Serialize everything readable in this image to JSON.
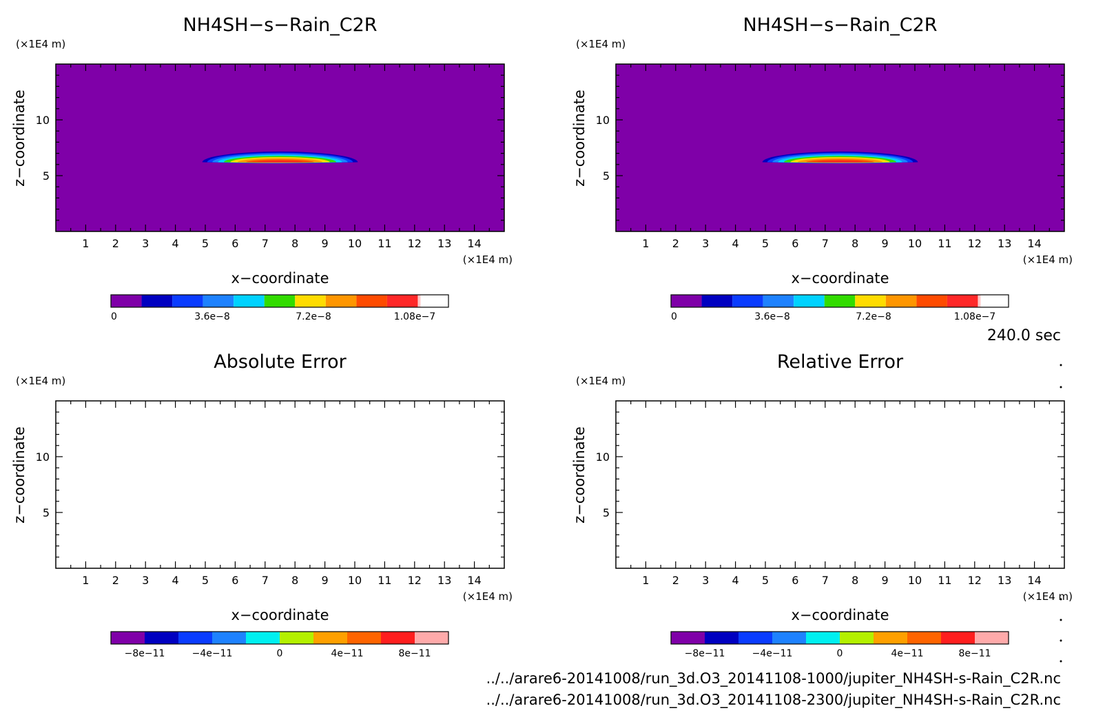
{
  "figure": {
    "time_label": "240.0 sec",
    "files": [
      "../../arare6-20141008/run_3d.O3_20141108-1000/jupiter_NH4SH-s-Rain_C2R.nc",
      "../../arare6-20141008/run_3d.O3_20141108-2300/jupiter_NH4SH-s-Rain_C2R.nc"
    ]
  },
  "chart_data": [
    {
      "type": "heatmap",
      "title": "NH4SH−s−Rain_C2R",
      "xlabel": "x−coordinate",
      "ylabel": "z−coordinate",
      "x_unit": "(×1E4 m)",
      "y_unit": "(×1E4 m)",
      "xlim": [
        0,
        15
      ],
      "ylim": [
        0,
        15
      ],
      "xticks": [
        "1",
        "2",
        "3",
        "4",
        "5",
        "6",
        "7",
        "8",
        "9",
        "10",
        "11",
        "12",
        "13",
        "14"
      ],
      "yticks": [
        "5",
        "10"
      ],
      "field": {
        "center_x": 7.5,
        "center_z": 6.2,
        "half_width_x": 2.6,
        "half_height_z": 0.6,
        "max": 1.1e-07,
        "background": 0
      },
      "colorbar": {
        "colors": [
          "#7f00a8",
          "#0000c0",
          "#0a3cff",
          "#1e82ff",
          "#00d2ff",
          "#32dc00",
          "#ffdc00",
          "#ff9600",
          "#ff4b00",
          "#ff2828",
          "#ffc8c8"
        ],
        "tick_labels": [
          "0",
          "3.6e−8",
          "7.2e−8",
          "1.08e−7"
        ]
      }
    },
    {
      "type": "heatmap",
      "title": "NH4SH−s−Rain_C2R",
      "xlabel": "x−coordinate",
      "ylabel": "z−coordinate",
      "x_unit": "(×1E4 m)",
      "y_unit": "(×1E4 m)",
      "xlim": [
        0,
        15
      ],
      "ylim": [
        0,
        15
      ],
      "xticks": [
        "1",
        "2",
        "3",
        "4",
        "5",
        "6",
        "7",
        "8",
        "9",
        "10",
        "11",
        "12",
        "13",
        "14"
      ],
      "yticks": [
        "5",
        "10"
      ],
      "field": {
        "center_x": 7.5,
        "center_z": 6.2,
        "half_width_x": 2.6,
        "half_height_z": 0.6,
        "max": 1.1e-07,
        "background": 0
      },
      "colorbar": {
        "colors": [
          "#7f00a8",
          "#0000c0",
          "#0a3cff",
          "#1e82ff",
          "#00d2ff",
          "#32dc00",
          "#ffdc00",
          "#ff9600",
          "#ff4b00",
          "#ff2828",
          "#ffc8c8"
        ],
        "tick_labels": [
          "0",
          "3.6e−8",
          "7.2e−8",
          "1.08e−7"
        ]
      }
    },
    {
      "type": "heatmap",
      "title": "Absolute Error",
      "xlabel": "x−coordinate",
      "ylabel": "z−coordinate",
      "x_unit": "(×1E4 m)",
      "y_unit": "(×1E4 m)",
      "xlim": [
        0,
        15
      ],
      "ylim": [
        0,
        15
      ],
      "xticks": [
        "1",
        "2",
        "3",
        "4",
        "5",
        "6",
        "7",
        "8",
        "9",
        "10",
        "11",
        "12",
        "13",
        "14"
      ],
      "yticks": [
        "5",
        "10"
      ],
      "field": null,
      "colorbar": {
        "colors": [
          "#7f00a8",
          "#0000c0",
          "#0a3cff",
          "#1e82ff",
          "#00f0f0",
          "#b4f000",
          "#ffa000",
          "#ff6400",
          "#ff1e1e",
          "#ffaaaa"
        ],
        "tick_labels": [
          "−8e−11",
          "−4e−11",
          "0",
          "4e−11",
          "8e−11"
        ]
      }
    },
    {
      "type": "heatmap",
      "title": "Relative Error",
      "xlabel": "x−coordinate",
      "ylabel": "z−coordinate",
      "x_unit": "(×1E4 m)",
      "y_unit": "(×1E4 m)",
      "xlim": [
        0,
        15
      ],
      "ylim": [
        0,
        15
      ],
      "xticks": [
        "1",
        "2",
        "3",
        "4",
        "5",
        "6",
        "7",
        "8",
        "9",
        "10",
        "11",
        "12",
        "13",
        "14"
      ],
      "yticks": [
        "5",
        "10"
      ],
      "field": null,
      "colorbar": {
        "colors": [
          "#7f00a8",
          "#0000c0",
          "#0a3cff",
          "#1e82ff",
          "#00f0f0",
          "#b4f000",
          "#ffa000",
          "#ff6400",
          "#ff1e1e",
          "#ffaaaa"
        ],
        "tick_labels": [
          "−8e−11",
          "−4e−11",
          "0",
          "4e−11",
          "8e−11"
        ]
      }
    }
  ]
}
